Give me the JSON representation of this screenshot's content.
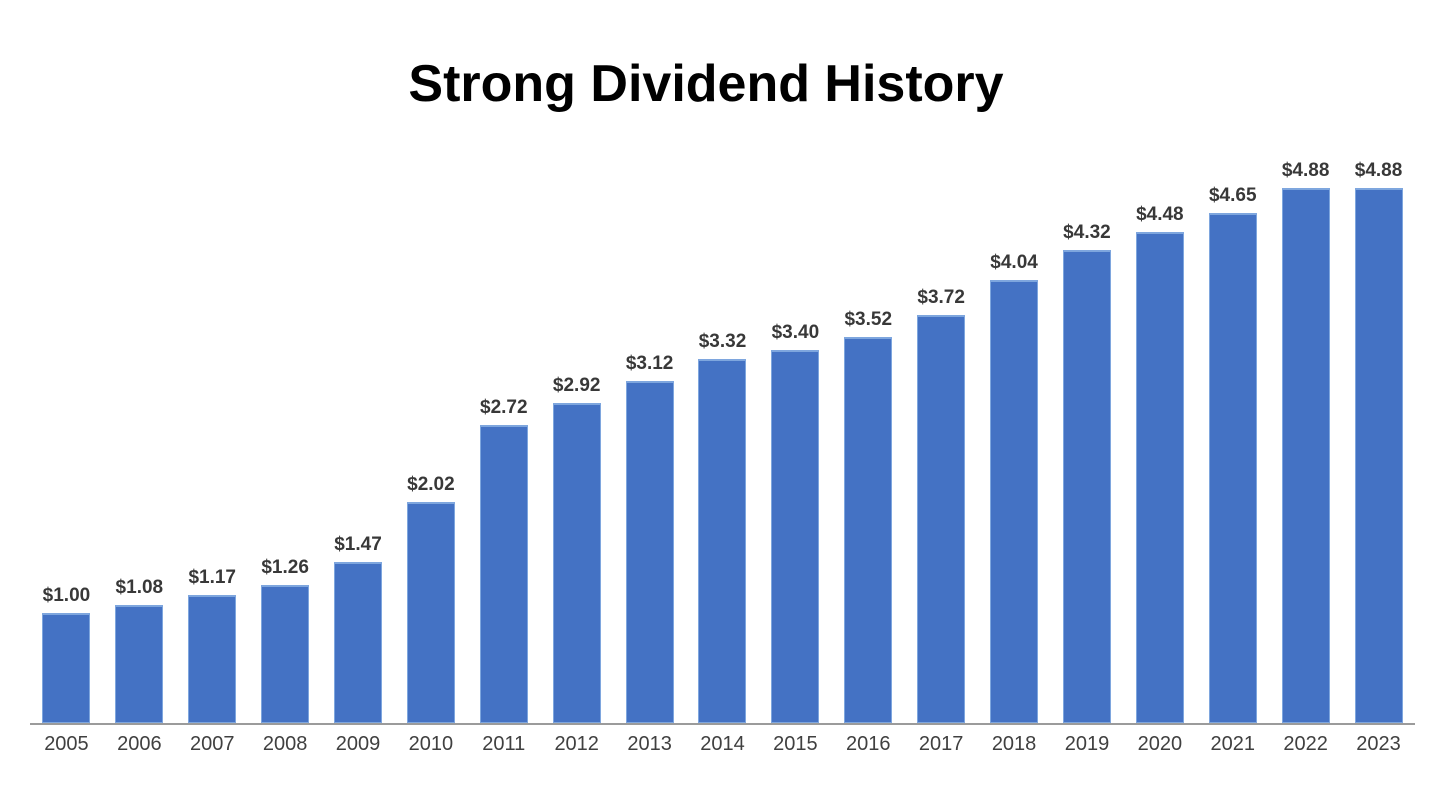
{
  "title": "Strong Dividend History",
  "chart_data": {
    "type": "bar",
    "title": "Strong Dividend History",
    "xlabel": "",
    "ylabel": "",
    "categories": [
      "2005",
      "2006",
      "2007",
      "2008",
      "2009",
      "2010",
      "2011",
      "2012",
      "2013",
      "2014",
      "2015",
      "2016",
      "2017",
      "2018",
      "2019",
      "2020",
      "2021",
      "2022",
      "2023"
    ],
    "values": [
      1.0,
      1.08,
      1.17,
      1.26,
      1.47,
      2.02,
      2.72,
      2.92,
      3.12,
      3.32,
      3.4,
      3.52,
      3.72,
      4.04,
      4.32,
      4.48,
      4.65,
      4.88,
      4.88
    ],
    "data_labels": [
      "$1.00",
      "$1.08",
      "$1.17",
      "$1.26",
      "$1.47",
      "$2.02",
      "$2.72",
      "$2.92",
      "$3.12",
      "$3.32",
      "$3.40",
      "$3.52",
      "$3.72",
      "$4.04",
      "$4.32",
      "$4.48",
      "$4.65",
      "$4.88",
      "$4.88"
    ],
    "ylim": [
      0,
      5
    ],
    "grid": false,
    "legend": "none",
    "show_data_labels": true,
    "bar_color": "#4472C4",
    "bar_border_color": "#7EA6DE",
    "axis_line_color": "#9B9B9B",
    "data_label_color": "#383838",
    "tick_label_color": "#404040",
    "title_color": "#000000",
    "background_color": "#FFFFFF"
  }
}
